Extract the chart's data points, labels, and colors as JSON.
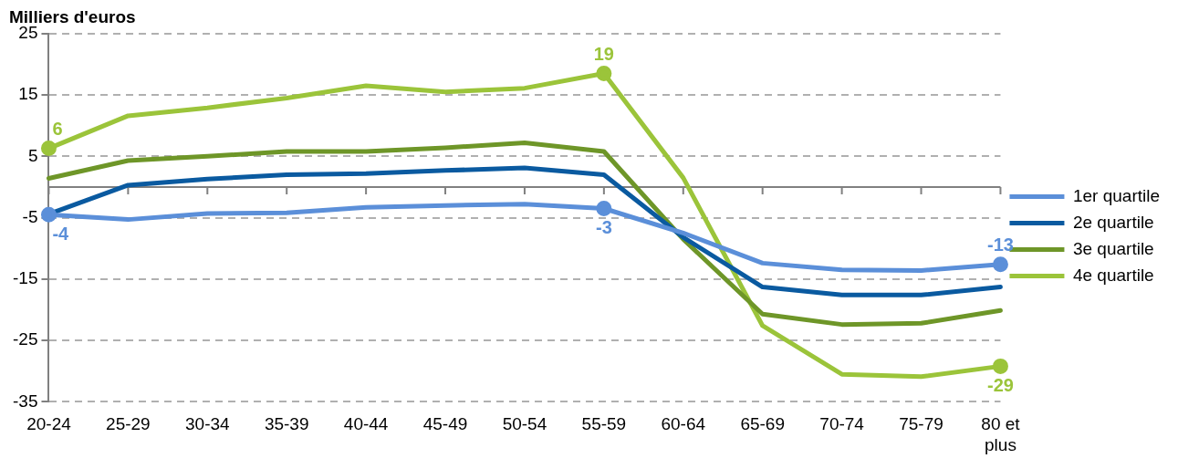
{
  "chart_data": {
    "type": "line",
    "ylabel": "Milliers d'euros",
    "categories": [
      "20-24",
      "25-29",
      "30-34",
      "35-39",
      "40-44",
      "45-49",
      "50-54",
      "55-59",
      "60-64",
      "65-69",
      "70-74",
      "75-79",
      "80 et plus"
    ],
    "ylim": [
      -35,
      25
    ],
    "yticks": [
      25,
      15,
      5,
      -5,
      -15,
      -25,
      -35
    ],
    "grid": "y",
    "legend": "right",
    "line_style": "solid",
    "ref_lines": [
      {
        "axis": "y",
        "value": 0,
        "color": "#808080"
      }
    ],
    "series": [
      {
        "name": "1er quartile",
        "color": "#5b8fd9",
        "values": [
          -4.5,
          -5.3,
          -4.3,
          -4.2,
          -3.3,
          -3.0,
          -2.8,
          -3.5,
          -7.5,
          -12.4,
          -13.5,
          -13.6,
          -12.6
        ],
        "value_labels": [
          "-4",
          null,
          null,
          null,
          null,
          null,
          null,
          "-3",
          null,
          null,
          null,
          null,
          "-13"
        ]
      },
      {
        "name": "2e quartile",
        "color": "#0a5aa0",
        "values": [
          -4.4,
          0.3,
          1.3,
          2.0,
          2.2,
          2.7,
          3.1,
          2.0,
          -8.2,
          -16.3,
          -17.6,
          -17.6,
          -16.3
        ]
      },
      {
        "name": "3e quartile",
        "color": "#6e9628",
        "values": [
          1.4,
          4.3,
          5.0,
          5.8,
          5.8,
          6.4,
          7.2,
          5.8,
          -8.5,
          -20.7,
          -22.4,
          -22.2,
          -20.1
        ]
      },
      {
        "name": "4e quartile",
        "color": "#9bc43a",
        "values": [
          6.3,
          11.6,
          12.9,
          14.5,
          16.5,
          15.5,
          16.1,
          18.5,
          1.5,
          -22.6,
          -30.5,
          -30.9,
          -29.2
        ],
        "value_labels": [
          "6",
          null,
          null,
          null,
          null,
          null,
          null,
          "19",
          null,
          null,
          null,
          null,
          "-29"
        ]
      }
    ]
  }
}
